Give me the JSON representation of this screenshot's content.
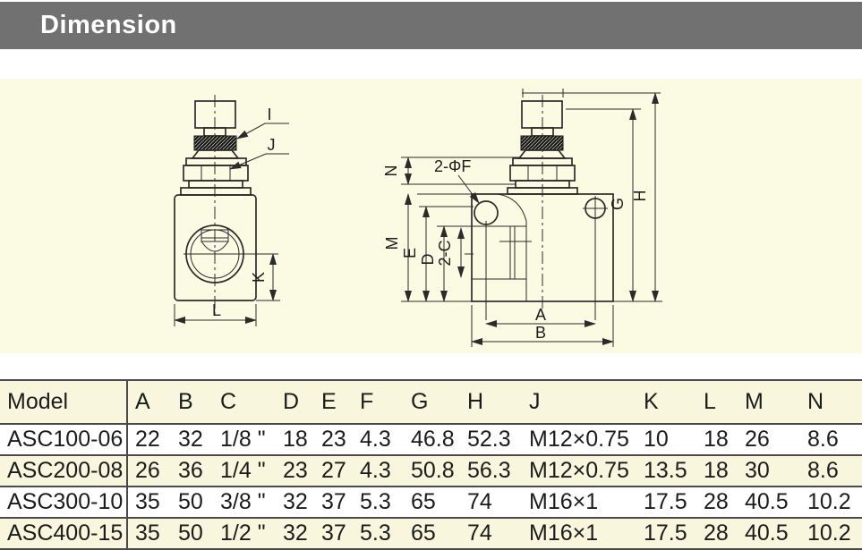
{
  "header": {
    "title": "Dimension"
  },
  "colors": {
    "title_bar_gray": "#717171",
    "panel_yellow": "#FBFAE3",
    "table_row_yellow": "#F8F6DC",
    "table_border": "#4a4a4a",
    "drawing_ink": "#2b2b2b"
  },
  "diagram": {
    "left_view": {
      "label_i": "I",
      "label_j": "J",
      "dim_k": "K",
      "dim_l": "L"
    },
    "right_view": {
      "label_holes": "2-ΦF",
      "dim_n": "N",
      "dim_m": "M",
      "dim_e": "E",
      "dim_d": "D",
      "dim_c": "2-C",
      "dim_g": "G",
      "dim_h": "H",
      "dim_a": "A",
      "dim_b": "B"
    }
  },
  "table": {
    "columns": [
      "Model",
      "A",
      "B",
      "C",
      "D",
      "E",
      "F",
      "G",
      "H",
      "J",
      "K",
      "L",
      "M",
      "N"
    ],
    "rows": [
      [
        "ASC100-06",
        "22",
        "32",
        "1/8 \"",
        "18",
        "23",
        "4.3",
        "46.8",
        "52.3",
        "M12×0.75",
        "10",
        "18",
        "26",
        "8.6"
      ],
      [
        "ASC200-08",
        "26",
        "36",
        "1/4 \"",
        "23",
        "27",
        "4.3",
        "50.8",
        "56.3",
        "M12×0.75",
        "13.5",
        "18",
        "30",
        "8.6"
      ],
      [
        "ASC300-10",
        "35",
        "50",
        "3/8 \"",
        "32",
        "37",
        "5.3",
        "65",
        "74",
        "M16×1",
        "17.5",
        "28",
        "40.5",
        "10.2"
      ],
      [
        "ASC400-15",
        "35",
        "50",
        "1/2 \"",
        "32",
        "37",
        "5.3",
        "65",
        "74",
        "M16×1",
        "17.5",
        "28",
        "40.5",
        "10.2"
      ]
    ]
  }
}
